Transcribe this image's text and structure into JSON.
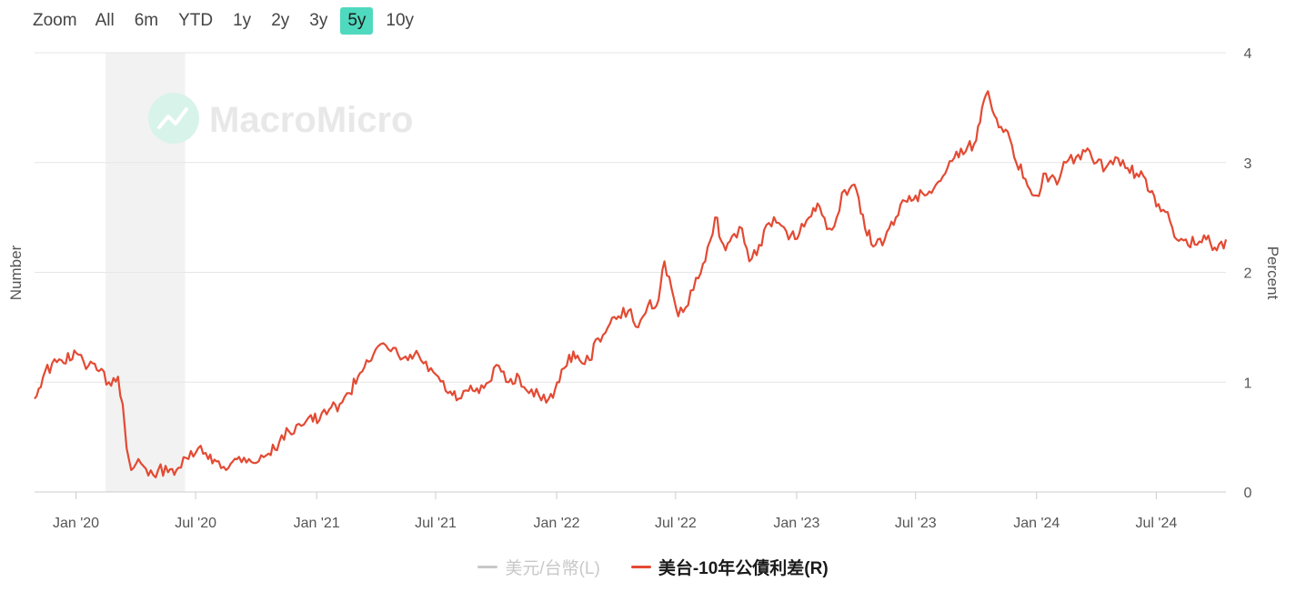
{
  "zoom": {
    "label": "Zoom",
    "buttons": [
      "All",
      "6m",
      "YTD",
      "1y",
      "2y",
      "3y",
      "5y",
      "10y"
    ],
    "active": "5y"
  },
  "watermark": "MacroMicro",
  "legend": {
    "items": [
      {
        "label": "美元/台幣(L)",
        "color": "#c8c8c8",
        "visible": false
      },
      {
        "label": "美台-10年公債利差(R)",
        "color": "#e34a33",
        "visible": true
      }
    ]
  },
  "chart_data": {
    "type": "line",
    "ylabel_left": "Number",
    "ylabel_right": "Percent",
    "x_ticks": [
      "Jan '20",
      "Jul '20",
      "Jan '21",
      "Jul '21",
      "Jan '22",
      "Jul '22",
      "Jan '23",
      "Jul '23",
      "Jan '24",
      "Jul '24"
    ],
    "y_right_ticks": [
      "0",
      "1",
      "2",
      "3",
      "4"
    ],
    "ylim_right": [
      0,
      4
    ],
    "xlim": [
      "2019-10-30",
      "2024-10-15"
    ],
    "grid": true,
    "shaded_region": {
      "start": "2020-02-15",
      "end": "2020-06-15",
      "color": "#f2f2f2"
    },
    "series": [
      {
        "name": "美台-10年公債利差(R)",
        "color": "#e34a33",
        "axis": "right",
        "x": [
          "2019-10-30",
          "2019-11-15",
          "2019-12-10",
          "2020-01-05",
          "2020-01-20",
          "2020-02-05",
          "2020-02-20",
          "2020-03-05",
          "2020-03-12",
          "2020-03-18",
          "2020-03-25",
          "2020-04-05",
          "2020-04-20",
          "2020-05-05",
          "2020-05-20",
          "2020-06-05",
          "2020-06-20",
          "2020-07-05",
          "2020-07-20",
          "2020-08-05",
          "2020-08-20",
          "2020-09-05",
          "2020-09-20",
          "2020-10-05",
          "2020-10-20",
          "2020-11-05",
          "2020-11-20",
          "2020-12-05",
          "2020-12-20",
          "2021-01-05",
          "2021-01-20",
          "2021-02-05",
          "2021-02-20",
          "2021-03-05",
          "2021-03-18",
          "2021-04-01",
          "2021-04-20",
          "2021-05-05",
          "2021-05-20",
          "2021-06-05",
          "2021-06-20",
          "2021-07-05",
          "2021-07-20",
          "2021-08-05",
          "2021-08-20",
          "2021-09-05",
          "2021-09-20",
          "2021-10-05",
          "2021-10-20",
          "2021-11-05",
          "2021-11-20",
          "2021-12-05",
          "2021-12-20",
          "2022-01-05",
          "2022-01-20",
          "2022-02-05",
          "2022-02-20",
          "2022-03-05",
          "2022-03-20",
          "2022-04-05",
          "2022-04-20",
          "2022-05-05",
          "2022-05-20",
          "2022-06-05",
          "2022-06-14",
          "2022-06-25",
          "2022-07-05",
          "2022-07-20",
          "2022-08-01",
          "2022-08-15",
          "2022-08-30",
          "2022-09-15",
          "2022-09-28",
          "2022-10-10",
          "2022-10-21",
          "2022-11-05",
          "2022-11-20",
          "2022-12-05",
          "2022-12-20",
          "2023-01-05",
          "2023-01-20",
          "2023-02-05",
          "2023-02-20",
          "2023-03-03",
          "2023-03-15",
          "2023-03-30",
          "2023-04-15",
          "2023-05-01",
          "2023-05-15",
          "2023-06-01",
          "2023-06-15",
          "2023-07-01",
          "2023-07-15",
          "2023-08-01",
          "2023-08-15",
          "2023-09-01",
          "2023-09-15",
          "2023-10-01",
          "2023-10-10",
          "2023-10-19",
          "2023-11-01",
          "2023-11-15",
          "2023-12-01",
          "2023-12-15",
          "2024-01-01",
          "2024-01-15",
          "2024-02-01",
          "2024-02-15",
          "2024-03-01",
          "2024-03-15",
          "2024-04-01",
          "2024-04-15",
          "2024-04-30",
          "2024-05-15",
          "2024-06-01",
          "2024-06-15",
          "2024-07-01",
          "2024-07-15",
          "2024-08-01",
          "2024-08-15",
          "2024-09-01",
          "2024-09-15",
          "2024-10-01",
          "2024-10-15"
        ],
        "y": [
          0.85,
          1.1,
          1.2,
          1.25,
          1.15,
          1.1,
          1.0,
          1.05,
          0.8,
          0.4,
          0.2,
          0.3,
          0.15,
          0.2,
          0.18,
          0.22,
          0.3,
          0.4,
          0.3,
          0.28,
          0.22,
          0.32,
          0.3,
          0.28,
          0.35,
          0.45,
          0.55,
          0.62,
          0.68,
          0.65,
          0.75,
          0.8,
          0.9,
          1.05,
          1.2,
          1.3,
          1.3,
          1.25,
          1.2,
          1.25,
          1.1,
          1.05,
          0.9,
          0.85,
          0.92,
          0.9,
          1.0,
          1.15,
          1.0,
          1.05,
          0.9,
          0.88,
          0.85,
          1.0,
          1.25,
          1.2,
          1.2,
          1.4,
          1.5,
          1.6,
          1.65,
          1.5,
          1.7,
          1.75,
          2.1,
          1.85,
          1.6,
          1.7,
          1.95,
          2.1,
          2.5,
          2.2,
          2.35,
          2.4,
          2.1,
          2.25,
          2.45,
          2.45,
          2.3,
          2.35,
          2.5,
          2.6,
          2.4,
          2.5,
          2.75,
          2.8,
          2.4,
          2.25,
          2.3,
          2.5,
          2.65,
          2.7,
          2.7,
          2.8,
          2.9,
          3.1,
          3.1,
          3.2,
          3.5,
          3.65,
          3.4,
          3.3,
          3.0,
          2.85,
          2.7,
          2.9,
          2.8,
          3.0,
          3.05,
          3.1,
          3.0,
          2.95,
          3.05,
          2.95,
          2.9,
          2.85,
          2.6,
          2.55,
          2.3,
          2.3,
          2.25,
          2.3,
          2.2,
          2.3
        ]
      }
    ]
  }
}
